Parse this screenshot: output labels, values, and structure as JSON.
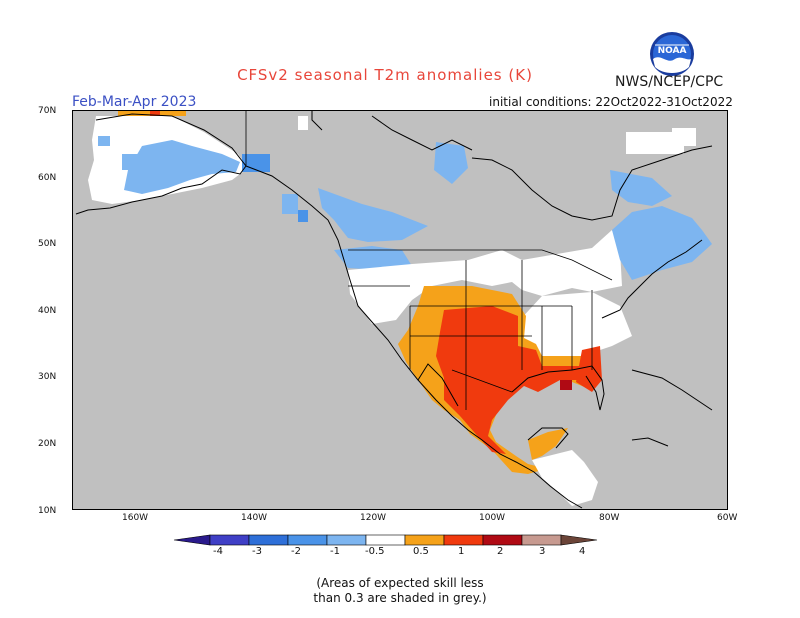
{
  "title": "CFSv2 seasonal T2m anomalies (K)",
  "agency": "NWS/NCEP/CPC",
  "logo_text": "NOAA",
  "period": "Feb-Mar-Apr 2023",
  "initial_conditions": "initial conditions: 22Oct2022-31Oct2022",
  "lat_labels": [
    "70N",
    "60N",
    "50N",
    "40N",
    "30N",
    "20N",
    "10N"
  ],
  "lon_labels": [
    "160W",
    "140W",
    "120W",
    "100W",
    "80W",
    "60W"
  ],
  "colorbar": {
    "labels": [
      "-4",
      "-3",
      "-2",
      "-1",
      "-0.5",
      "0.5",
      "1",
      "2",
      "3",
      "4"
    ],
    "colors": [
      "#2a1a8c",
      "#3f3fc6",
      "#2e6fd8",
      "#4a93e8",
      "#7db5f0",
      "#ffffff",
      "#f5a21a",
      "#f03a0e",
      "#b00a14",
      "#c79a90",
      "#6b4438"
    ]
  },
  "note_line1": "(Areas of expected skill less",
  "note_line2": "than 0.3 are shaded in grey.)",
  "colors": {
    "title": "#e8463a",
    "period": "#3b50c4",
    "skill_mask": "#c0c0c0",
    "ocean": "#c0c0c0"
  }
}
